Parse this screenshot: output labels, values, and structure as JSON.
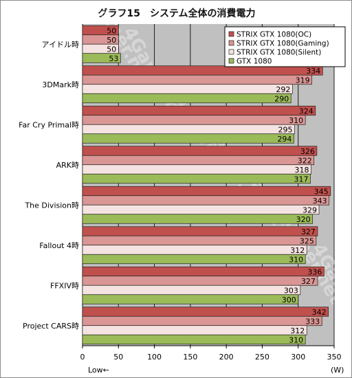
{
  "chart_data": {
    "type": "bar",
    "orientation": "horizontal",
    "title": "グラフ15　システム全体の消費電力",
    "categories": [
      "アイドル時",
      "3DMark時",
      "Far Cry Primal時",
      "ARK時",
      "The Division時",
      "Fallout 4時",
      "FFXIV時",
      "Project CARS時"
    ],
    "series": [
      {
        "name": "STRIX GTX 1080(OC)",
        "color": "#c0504d",
        "values": [
          50,
          334,
          324,
          326,
          345,
          327,
          336,
          342
        ]
      },
      {
        "name": "STRIX GTX 1080(Gaming)",
        "color": "#d99694",
        "values": [
          50,
          319,
          310,
          322,
          343,
          325,
          327,
          333
        ]
      },
      {
        "name": "STRIX GTX 1080(Silent)",
        "color": "#f5e3e1",
        "values": [
          50,
          292,
          295,
          318,
          329,
          312,
          303,
          312
        ]
      },
      {
        "name": "GTX 1080",
        "color": "#9bbb59",
        "values": [
          53,
          290,
          294,
          317,
          320,
          310,
          300,
          310
        ]
      }
    ],
    "xlim": [
      0,
      350
    ],
    "xticks": [
      0,
      50,
      100,
      150,
      200,
      250,
      300,
      350
    ],
    "unit_label": "(W)",
    "low_label": "Low←",
    "grid": true,
    "legend_position": "top-right",
    "watermark": "4Gamer.net"
  }
}
